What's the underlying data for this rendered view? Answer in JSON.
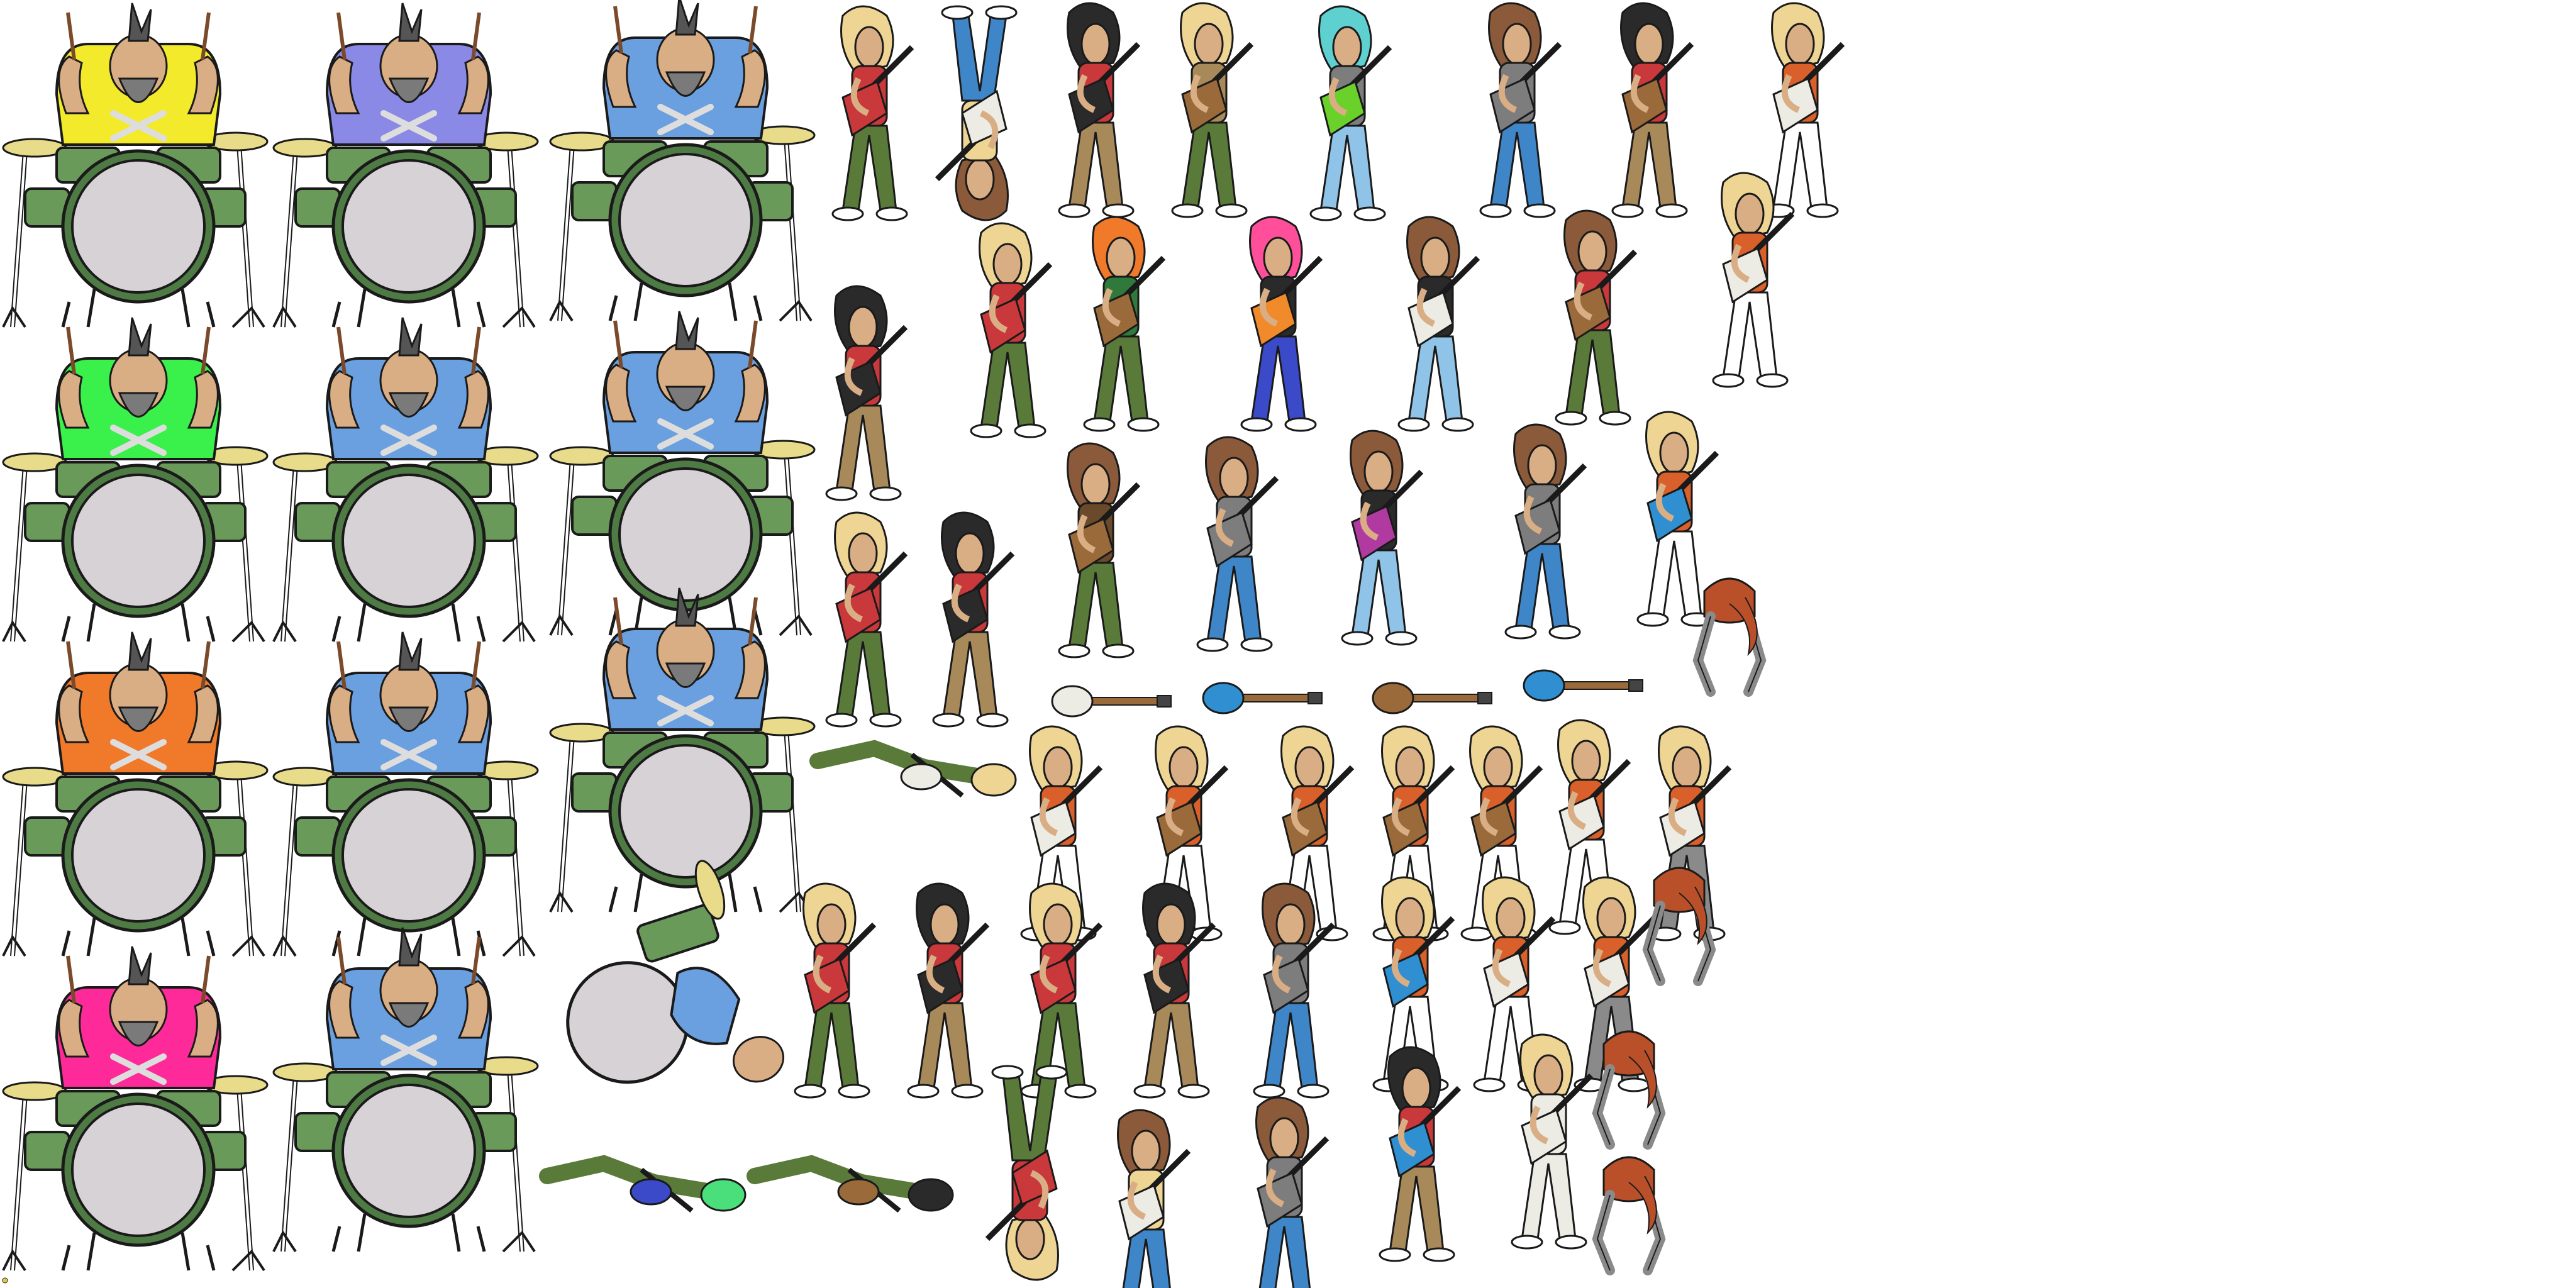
{
  "sprite_sheet": {
    "background": "#ffffff",
    "colors": {
      "outline": "#1a1a1a",
      "drum_shell": "#6a9a5a",
      "drum_shell_dark": "#4e7a44",
      "drum_head": "#d6d2d6",
      "cymbal": "#e8dc8a",
      "stand": "#ffffff",
      "skin": "#d9ae85",
      "beard": "#7a7a7a",
      "hair_blonde": "#eed593",
      "hair_brown": "#8a5a3a",
      "hair_black": "#2a2a2a",
      "hair_teal": "#5fd0d0",
      "hair_pink": "#ff4f9a",
      "hair_orange": "#f07a2a",
      "shirt_red": "#c9383a",
      "shirt_grey": "#7d7d7d",
      "camo": "#5a7a3a",
      "jeans_blue": "#3f86c9",
      "jeans_light": "#8fc4e8",
      "shorts_khaki": "#a88a5a",
      "guitar_green": "#6ad12a",
      "guitar_orange": "#f08a2a",
      "guitar_purple": "#b03aa0",
      "guitar_white": "#ecebe4",
      "guitar_brown": "#9a6a3a",
      "guitar_blue": "#2f8fd0",
      "tattoo_sleeve": "#d9602a",
      "boot_purple": "#5a3ad0",
      "grey_limbs": "#8a8a8a",
      "rust_scarf": "#b9502a"
    },
    "drummer_shirt_colors": [
      "#f2ea2a",
      "#8a8ae6",
      "#6aa0e0",
      "#3af04a",
      "#6aa0e0",
      "#6aa0e0",
      "#f07a2a",
      "#6aa0e0",
      "#6aa0e0",
      "#ff2a9a",
      "#6aa0e0"
    ],
    "drum_frames": 15,
    "guitarist_frames": 60,
    "guitar_props": 8
  }
}
